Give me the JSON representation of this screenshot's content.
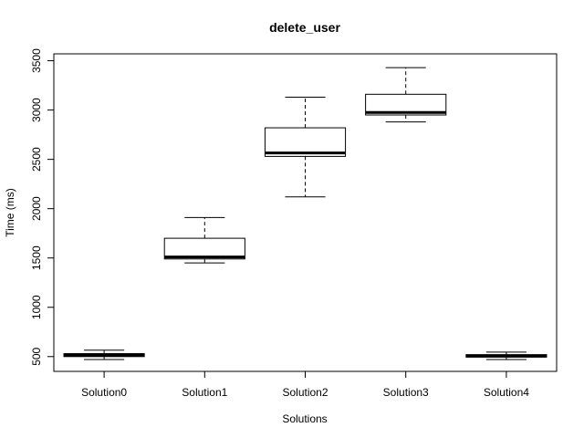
{
  "chart_data": {
    "type": "boxplot",
    "title": "delete_user",
    "xlabel": "Solutions",
    "ylabel": "Time (ms)",
    "ylim": [
      350,
      3570
    ],
    "yticks": [
      500,
      1000,
      1500,
      2000,
      2500,
      3000,
      3500
    ],
    "grid": false,
    "legend": "none",
    "categories": [
      "Solution0",
      "Solution1",
      "Solution2",
      "Solution3",
      "Solution4"
    ],
    "boxes": [
      {
        "category": "Solution0",
        "whisker_low": 470,
        "q1": 500,
        "median": 515,
        "q3": 530,
        "whisker_high": 565
      },
      {
        "category": "Solution1",
        "whisker_low": 1450,
        "q1": 1490,
        "median": 1510,
        "q3": 1700,
        "whisker_high": 1910
      },
      {
        "category": "Solution2",
        "whisker_low": 2120,
        "q1": 2530,
        "median": 2565,
        "q3": 2820,
        "whisker_high": 3130
      },
      {
        "category": "Solution3",
        "whisker_low": 2880,
        "q1": 2950,
        "median": 2975,
        "q3": 3160,
        "whisker_high": 3430
      },
      {
        "category": "Solution4",
        "whisker_low": 470,
        "q1": 495,
        "median": 505,
        "q3": 520,
        "whisker_high": 545
      }
    ],
    "colors": {
      "box_fill": "#ffffff",
      "stroke": "#000000"
    }
  }
}
